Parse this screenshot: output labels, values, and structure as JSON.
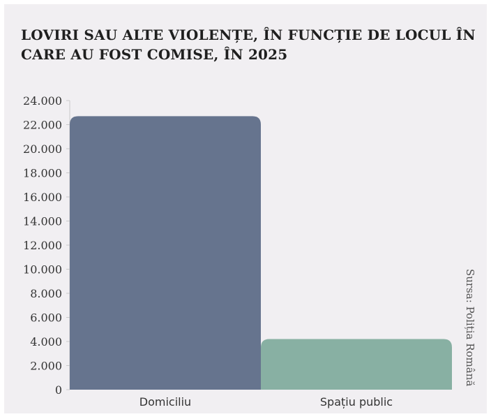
{
  "chart_data": {
    "type": "bar",
    "title": "LOVIRI SAU ALTE VIOLENȚE, ÎN FUNCȚIE DE LOCUL ÎN CARE AU FOST COMISE, ÎN 2025",
    "categories": [
      "Domiciliu",
      "Spațiu public"
    ],
    "values": [
      22700,
      4200
    ],
    "colors": [
      "#66748e",
      "#88b0a3"
    ],
    "ylim": [
      0,
      24000
    ],
    "yticks": [
      "0",
      "2.000",
      "4.000",
      "6.000",
      "8.000",
      "10.000",
      "12.000",
      "14.000",
      "16.000",
      "18.000",
      "20.000",
      "22.000",
      "24.000"
    ],
    "grid": false,
    "source": "Sursa: Poliția Română"
  }
}
